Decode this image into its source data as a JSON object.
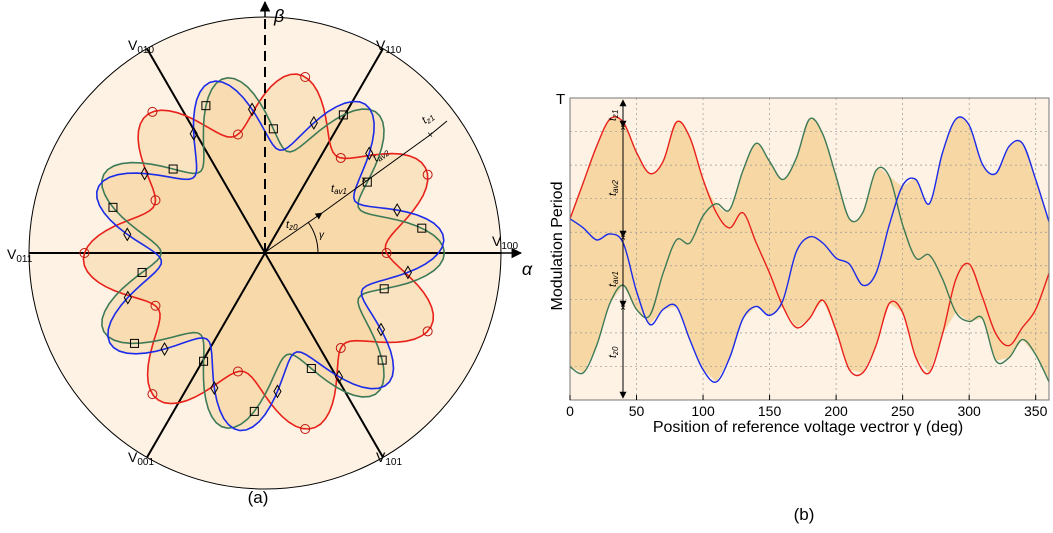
{
  "chart_data": [
    {
      "type": "polar",
      "panel_label": "(a)",
      "axes": {
        "alpha": "α",
        "beta": "β"
      },
      "vectors": [
        {
          "label": "V100",
          "angle_deg": 0
        },
        {
          "label": "V110",
          "angle_deg": 60
        },
        {
          "label": "V010",
          "angle_deg": 120
        },
        {
          "label": "V011",
          "angle_deg": 180
        },
        {
          "label": "V001",
          "angle_deg": 240
        },
        {
          "label": "V101",
          "angle_deg": 300
        }
      ],
      "annotations": [
        "tz0",
        "tav1",
        "tav2",
        "tz1",
        "γ"
      ],
      "series": [
        {
          "name": "red",
          "color": "#e8211b",
          "marker": "circle",
          "base_radius": 0.64,
          "ripple": 0.13,
          "lobes": 7,
          "phase_deg": 28
        },
        {
          "name": "green",
          "color": "#3e7a58",
          "marker": "square",
          "base_radius": 0.6,
          "ripple": 0.16,
          "lobes": 7,
          "phase_deg": 0
        },
        {
          "name": "blue",
          "color": "#1b2be8",
          "marker": "diamond",
          "base_radius": 0.6,
          "ripple": 0.16,
          "lobes": 7,
          "phase_deg": 56
        }
      ]
    },
    {
      "type": "line",
      "panel_label": "(b)",
      "xlabel": "Position of reference voltage vectror γ (deg)",
      "ylabel": "Modulation Period",
      "top_label": "T",
      "xlim": [
        0,
        360
      ],
      "ylim": [
        0,
        1
      ],
      "xticks": [
        0,
        50,
        100,
        150,
        200,
        250,
        300,
        350
      ],
      "annotations": [
        "tz1",
        "tav2",
        "tav1",
        "tz0"
      ],
      "fill_color": "#f7d7a4",
      "background": "#fdf2e3",
      "series": [
        {
          "name": "red",
          "color": "#e8211b",
          "x": [
            0,
            10,
            20,
            30,
            40,
            50,
            60,
            70,
            80,
            90,
            100,
            110,
            120,
            130,
            140,
            150,
            160,
            170,
            180,
            190,
            200,
            210,
            220,
            230,
            240,
            250,
            260,
            270,
            280,
            290,
            300,
            310,
            320,
            330,
            340,
            350,
            360
          ],
          "y": [
            0.6,
            0.72,
            0.84,
            0.93,
            0.92,
            0.82,
            0.75,
            0.79,
            0.92,
            0.87,
            0.73,
            0.62,
            0.57,
            0.62,
            0.52,
            0.42,
            0.31,
            0.24,
            0.27,
            0.33,
            0.23,
            0.1,
            0.09,
            0.18,
            0.32,
            0.29,
            0.14,
            0.09,
            0.22,
            0.4,
            0.45,
            0.34,
            0.22,
            0.18,
            0.24,
            0.3,
            0.42
          ]
        },
        {
          "name": "green",
          "color": "#3e7a58",
          "x": [
            0,
            10,
            20,
            30,
            40,
            50,
            60,
            70,
            80,
            90,
            100,
            110,
            120,
            130,
            140,
            150,
            160,
            170,
            180,
            190,
            200,
            210,
            220,
            230,
            240,
            250,
            260,
            270,
            280,
            290,
            300,
            310,
            320,
            330,
            340,
            350,
            360
          ],
          "y": [
            0.11,
            0.09,
            0.18,
            0.32,
            0.38,
            0.3,
            0.28,
            0.42,
            0.53,
            0.52,
            0.61,
            0.65,
            0.63,
            0.76,
            0.85,
            0.79,
            0.73,
            0.8,
            0.93,
            0.88,
            0.74,
            0.6,
            0.62,
            0.76,
            0.74,
            0.58,
            0.47,
            0.48,
            0.4,
            0.29,
            0.26,
            0.27,
            0.13,
            0.14,
            0.2,
            0.15,
            0.06
          ]
        },
        {
          "name": "blue",
          "color": "#1b2be8",
          "x": [
            0,
            10,
            20,
            30,
            40,
            50,
            60,
            70,
            80,
            90,
            100,
            110,
            120,
            130,
            140,
            150,
            160,
            170,
            180,
            190,
            200,
            210,
            220,
            230,
            240,
            250,
            260,
            270,
            280,
            290,
            300,
            310,
            320,
            330,
            340,
            350,
            360
          ],
          "y": [
            0.6,
            0.57,
            0.53,
            0.55,
            0.52,
            0.36,
            0.25,
            0.3,
            0.31,
            0.2,
            0.1,
            0.06,
            0.14,
            0.27,
            0.31,
            0.28,
            0.33,
            0.49,
            0.54,
            0.52,
            0.47,
            0.45,
            0.38,
            0.42,
            0.58,
            0.71,
            0.73,
            0.65,
            0.82,
            0.93,
            0.91,
            0.78,
            0.75,
            0.84,
            0.85,
            0.73,
            0.59
          ]
        }
      ]
    }
  ]
}
